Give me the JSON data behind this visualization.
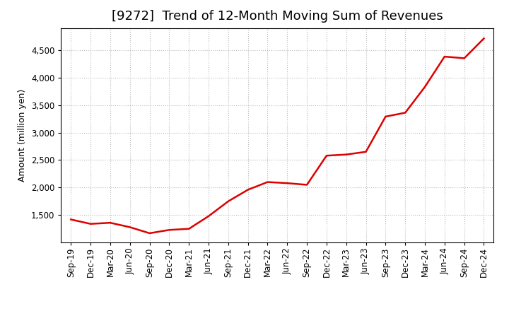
{
  "title": "[9272]  Trend of 12-Month Moving Sum of Revenues",
  "ylabel": "Amount (million yen)",
  "line_color": "#dd0000",
  "background_color": "#ffffff",
  "grid_color": "#bbbbbb",
  "x_labels": [
    "Sep-19",
    "Dec-19",
    "Mar-20",
    "Jun-20",
    "Sep-20",
    "Dec-20",
    "Mar-21",
    "Jun-21",
    "Sep-21",
    "Dec-21",
    "Mar-22",
    "Jun-22",
    "Sep-22",
    "Dec-22",
    "Mar-23",
    "Jun-23",
    "Sep-23",
    "Dec-23",
    "Mar-24",
    "Jun-24",
    "Sep-24",
    "Dec-24"
  ],
  "y_values": [
    1420,
    1340,
    1360,
    1280,
    1170,
    1230,
    1250,
    1480,
    1750,
    1960,
    2100,
    2080,
    2050,
    2580,
    2600,
    2650,
    3290,
    3360,
    3830,
    4380,
    4350,
    4710
  ],
  "ylim": [
    1000,
    4900
  ],
  "yticks": [
    1500,
    2000,
    2500,
    3000,
    3500,
    4000,
    4500
  ],
  "title_fontsize": 13,
  "axis_fontsize": 9,
  "tick_fontsize": 8.5,
  "title_fontweight": "normal",
  "line_width": 1.8
}
